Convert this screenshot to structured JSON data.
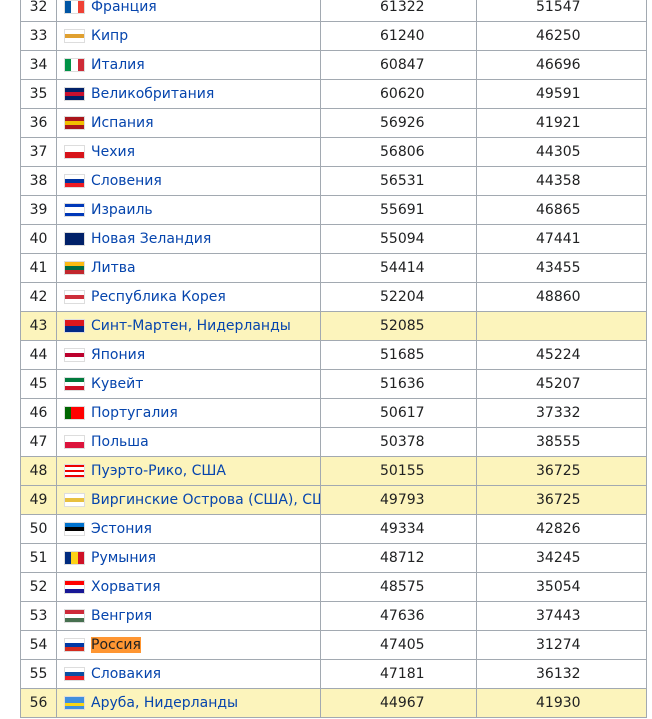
{
  "table": {
    "rows": [
      {
        "rank": 32,
        "name": "Франция",
        "v1": 61322,
        "v2": 51547,
        "highlighted": false
      },
      {
        "rank": 33,
        "name": "Кипр",
        "v1": 61240,
        "v2": 46250,
        "highlighted": false
      },
      {
        "rank": 34,
        "name": "Италия",
        "v1": 60847,
        "v2": 46696,
        "highlighted": false
      },
      {
        "rank": 35,
        "name": "Великобритания",
        "v1": 60620,
        "v2": 49591,
        "highlighted": false
      },
      {
        "rank": 36,
        "name": "Испания",
        "v1": 56926,
        "v2": 41921,
        "highlighted": false
      },
      {
        "rank": 37,
        "name": "Чехия",
        "v1": 56806,
        "v2": 44305,
        "highlighted": false
      },
      {
        "rank": 38,
        "name": "Словения",
        "v1": 56531,
        "v2": 44358,
        "highlighted": false
      },
      {
        "rank": 39,
        "name": "Израиль",
        "v1": 55691,
        "v2": 46865,
        "highlighted": false
      },
      {
        "rank": 40,
        "name": "Новая Зеландия",
        "v1": 55094,
        "v2": 47441,
        "highlighted": false
      },
      {
        "rank": 41,
        "name": "Литва",
        "v1": 54414,
        "v2": 43455,
        "highlighted": false
      },
      {
        "rank": 42,
        "name": "Республика Корея",
        "v1": 52204,
        "v2": 48860,
        "highlighted": false
      },
      {
        "rank": 43,
        "name": "Синт-Мартен, Нидерланды",
        "v1": 52085,
        "v2": null,
        "highlighted": true
      },
      {
        "rank": 44,
        "name": "Япония",
        "v1": 51685,
        "v2": 45224,
        "highlighted": false
      },
      {
        "rank": 45,
        "name": "Кувейт",
        "v1": 51636,
        "v2": 45207,
        "highlighted": false
      },
      {
        "rank": 46,
        "name": "Португалия",
        "v1": 50617,
        "v2": 37332,
        "highlighted": false
      },
      {
        "rank": 47,
        "name": "Польша",
        "v1": 50378,
        "v2": 38555,
        "highlighted": false
      },
      {
        "rank": 48,
        "name": "Пуэрто-Рико, США",
        "v1": 50155,
        "v2": 36725,
        "highlighted": true
      },
      {
        "rank": 49,
        "name": "Виргинские Острова (США), США",
        "v1": 49793,
        "v2": 36725,
        "highlighted": true
      },
      {
        "rank": 50,
        "name": "Эстония",
        "v1": 49334,
        "v2": 42826,
        "highlighted": false
      },
      {
        "rank": 51,
        "name": "Румыния",
        "v1": 48712,
        "v2": 34245,
        "highlighted": false
      },
      {
        "rank": 52,
        "name": "Хорватия",
        "v1": 48575,
        "v2": 35054,
        "highlighted": false
      },
      {
        "rank": 53,
        "name": "Венгрия",
        "v1": 47636,
        "v2": 37443,
        "highlighted": false
      },
      {
        "rank": 54,
        "name": "Россия",
        "v1": 47405,
        "v2": 31274,
        "highlighted": false,
        "search_match": true
      },
      {
        "rank": 55,
        "name": "Словакия",
        "v1": 47181,
        "v2": 36132,
        "highlighted": false
      },
      {
        "rank": 56,
        "name": "Аруба, Нидерланды",
        "v1": 44967,
        "v2": 41930,
        "highlighted": true
      }
    ]
  }
}
